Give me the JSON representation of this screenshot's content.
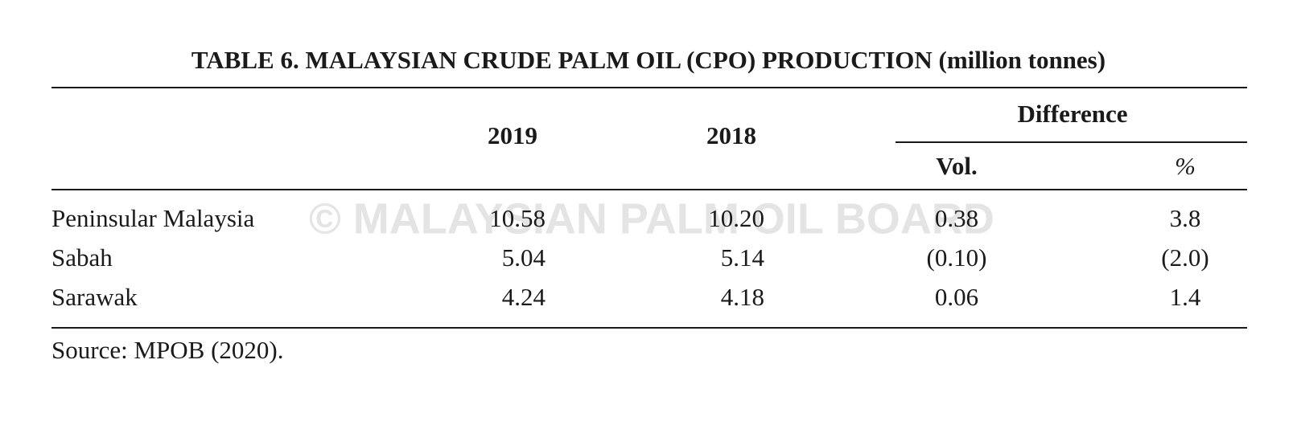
{
  "header": {
    "title": "TABLE 6. MALAYSIAN CRUDE PALM OIL (CPO) PRODUCTION (million tonnes)"
  },
  "table": {
    "headers": {
      "year_1": "2019",
      "year_2": "2018",
      "difference": "Difference",
      "vol": "Vol.",
      "pct": "%"
    },
    "rows": [
      [
        "Peninsular Malaysia",
        "10.58",
        "10.20",
        "0.38",
        "3.8"
      ],
      [
        "Sabah",
        "5.04",
        "5.14",
        "(0.10)",
        "(2.0)"
      ],
      [
        "Sarawak",
        "4.24",
        "4.18",
        "0.06",
        "1.4"
      ]
    ]
  },
  "footer": {
    "source": "Source: MPOB (2020)."
  },
  "watermark": "© MALAYSIAN PALM OIL BOARD"
}
